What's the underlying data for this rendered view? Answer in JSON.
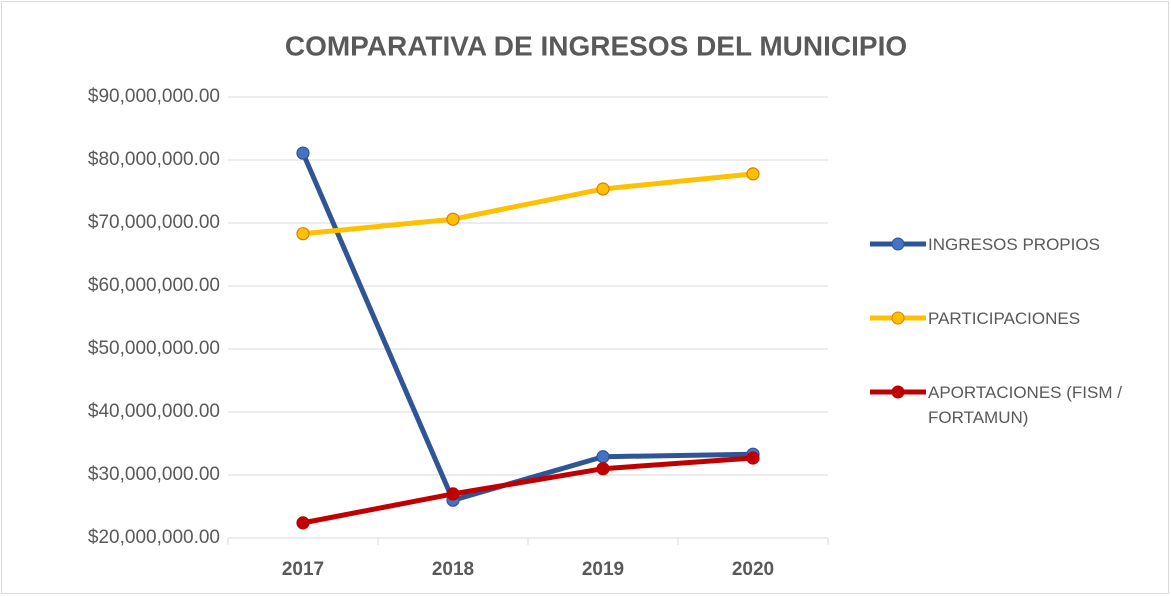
{
  "chart_data": {
    "type": "line",
    "title": "COMPARATIVA DE INGRESOS DEL MUNICIPIO",
    "categories": [
      "2017",
      "2018",
      "2019",
      "2020"
    ],
    "series": [
      {
        "name": "INGRESOS PROPIOS",
        "color": "#2f5597",
        "marker_color": "#4472c4",
        "values": [
          81100000,
          26000000,
          32900000,
          33300000
        ]
      },
      {
        "name": "PARTICIPACIONES",
        "color": "#ffc000",
        "marker_color": "#ffc000",
        "values": [
          68300000,
          70600000,
          75400000,
          77800000
        ]
      },
      {
        "name": "APORTACIONES (FISM / FORTAMUN)",
        "color": "#c00000",
        "marker_color": "#c00000",
        "values": [
          22400000,
          27000000,
          31000000,
          32700000
        ]
      }
    ],
    "ylim": [
      20000000,
      90000000
    ],
    "yticks": [
      {
        "value": 20000000,
        "label": "$20,000,000.00"
      },
      {
        "value": 30000000,
        "label": "$30,000,000.00"
      },
      {
        "value": 40000000,
        "label": "$40,000,000.00"
      },
      {
        "value": 50000000,
        "label": "$50,000,000.00"
      },
      {
        "value": 60000000,
        "label": "$60,000,000.00"
      },
      {
        "value": 70000000,
        "label": "$70,000,000.00"
      },
      {
        "value": 80000000,
        "label": "$80,000,000.00"
      },
      {
        "value": 90000000,
        "label": "$90,000,000.00"
      }
    ],
    "grid": true,
    "legend": "right"
  }
}
